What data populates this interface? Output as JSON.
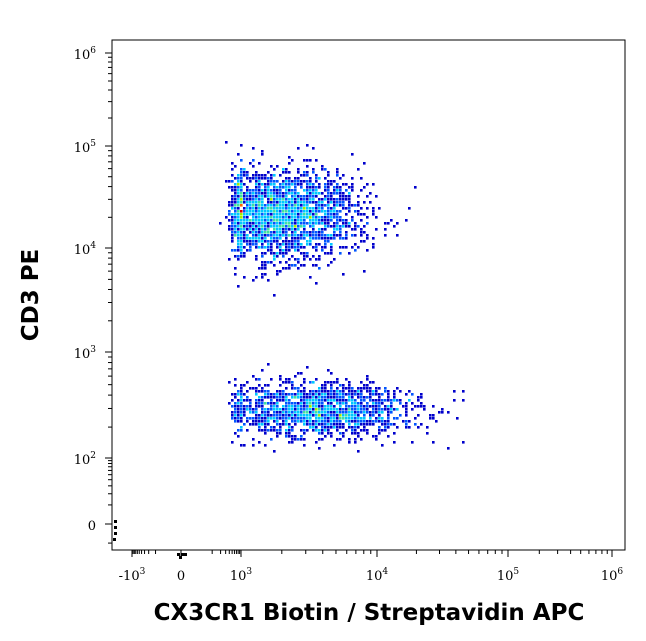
{
  "chart_data": {
    "type": "scatter",
    "title": "",
    "xlabel": "CX3CR1 Biotin / Streptavidin APC",
    "ylabel": "CD3 PE",
    "x_scale": "biexponential",
    "y_scale": "biexponential",
    "xlim": [
      -2000,
      1300000
    ],
    "ylim": [
      -30,
      1300000
    ],
    "x_ticks": [
      {
        "base": "-10",
        "exp": "3",
        "value": -1000
      },
      {
        "base": "0",
        "exp": "",
        "value": 0
      },
      {
        "base": "10",
        "exp": "3",
        "value": 1000
      },
      {
        "base": "10",
        "exp": "4",
        "value": 10000
      },
      {
        "base": "10",
        "exp": "5",
        "value": 100000
      },
      {
        "base": "10",
        "exp": "6",
        "value": 1000000
      }
    ],
    "y_ticks": [
      {
        "base": "0",
        "exp": "",
        "value": 0
      },
      {
        "base": "10",
        "exp": "2",
        "value": 100
      },
      {
        "base": "10",
        "exp": "3",
        "value": 1000
      },
      {
        "base": "10",
        "exp": "4",
        "value": 10000
      },
      {
        "base": "10",
        "exp": "5",
        "value": 100000
      },
      {
        "base": "10",
        "exp": "6",
        "value": 1000000
      }
    ],
    "density_colormap": [
      "#0000cc",
      "#0055ff",
      "#00c8ff",
      "#40e0a0",
      "#a0f000",
      "#ffd000",
      "#ff6000",
      "#e00000"
    ],
    "grid": false,
    "legend": "none",
    "populations": [
      {
        "name": "",
        "x_center": 2000,
        "y_center": 22000,
        "x_spread_decades": 0.28,
        "y_spread_decades": 0.22,
        "events": 2300
      },
      {
        "name": "",
        "x_center": 3600,
        "y_center": 300,
        "x_spread_decades": 0.36,
        "y_spread_decades": 0.13,
        "events": 1500
      }
    ]
  }
}
